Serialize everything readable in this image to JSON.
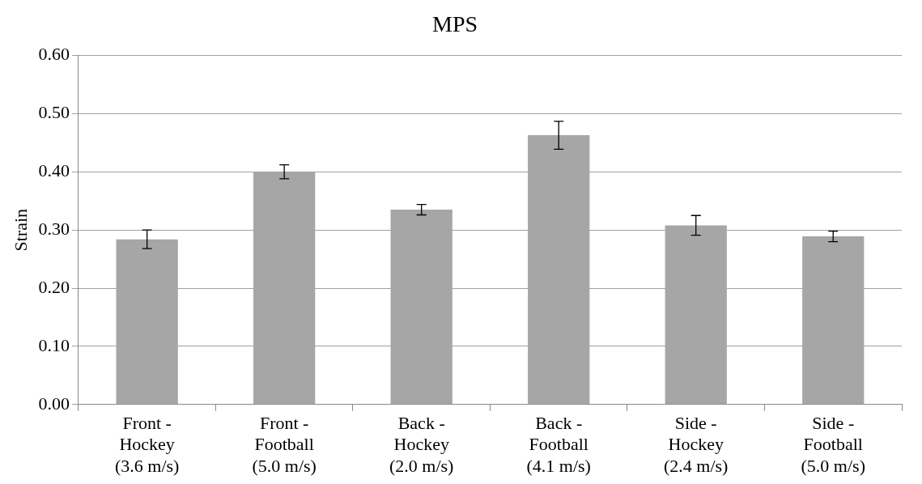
{
  "chart_data": {
    "type": "bar",
    "title": "MPS",
    "ylabel": "Strain",
    "categories": [
      "Front -\nHockey\n(3.6 m/s)",
      "Front -\nFootball\n(5.0 m/s)",
      "Back -\nHockey\n(2.0 m/s)",
      "Back -\nFootball\n(4.1 m/s)",
      "Side -\nHockey\n(2.4 m/s)",
      "Side -\nFootball\n(5.0 m/s)"
    ],
    "values": [
      0.284,
      0.4,
      0.335,
      0.463,
      0.308,
      0.289
    ],
    "errors": [
      0.016,
      0.012,
      0.009,
      0.024,
      0.017,
      0.009
    ],
    "color": "#a6a6a6",
    "ylim": [
      0,
      0.6
    ],
    "yticks": [
      {
        "value": 0,
        "label": "0.00"
      },
      {
        "value": 0.1,
        "label": "0.10"
      },
      {
        "value": 0.2,
        "label": "0.20"
      },
      {
        "value": 0.3,
        "label": "0.30"
      },
      {
        "value": 0.4,
        "label": "0.40"
      },
      {
        "value": 0.5,
        "label": "0.50"
      },
      {
        "value": 0.6,
        "label": "0.60"
      }
    ],
    "grid": "y",
    "legend": false
  }
}
